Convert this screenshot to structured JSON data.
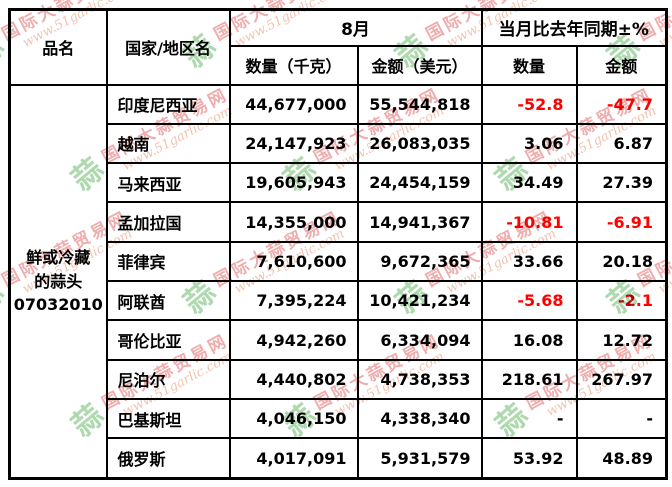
{
  "table": {
    "headers": {
      "product": "品名",
      "country": "国家/地区名",
      "month_group": "8月",
      "yoy_group": "当月比去年同期±%",
      "qty_kg": "数量（千克）",
      "amount_usd": "金额（美元）",
      "qty": "数量",
      "amount": "金额"
    },
    "product": {
      "name": "鲜或冷藏的蒜头",
      "code": "07032010"
    },
    "rows": [
      {
        "country": "印度尼西亚",
        "qty": "44,677,000",
        "amount": "55,544,818",
        "qty_pct": "-52.8",
        "amount_pct": "-47.7"
      },
      {
        "country": "越南",
        "qty": "24,147,923",
        "amount": "26,083,035",
        "qty_pct": "3.06",
        "amount_pct": "6.87"
      },
      {
        "country": "马来西亚",
        "qty": "19,605,943",
        "amount": "24,454,159",
        "qty_pct": "34.49",
        "amount_pct": "27.39"
      },
      {
        "country": "孟加拉国",
        "qty": "14,355,000",
        "amount": "14,941,367",
        "qty_pct": "-10.81",
        "amount_pct": "-6.91"
      },
      {
        "country": "菲律宾",
        "qty": "7,610,600",
        "amount": "9,672,365",
        "qty_pct": "33.66",
        "amount_pct": "20.18"
      },
      {
        "country": "阿联酋",
        "qty": "7,395,224",
        "amount": "10,421,234",
        "qty_pct": "-5.68",
        "amount_pct": "-2.1"
      },
      {
        "country": "哥伦比亚",
        "qty": "4,942,260",
        "amount": "6,334,094",
        "qty_pct": "16.08",
        "amount_pct": "12.72"
      },
      {
        "country": "尼泊尔",
        "qty": "4,440,802",
        "amount": "4,738,353",
        "qty_pct": "218.61",
        "amount_pct": "267.97"
      },
      {
        "country": "巴基斯坦",
        "qty": "4,046,150",
        "amount": "4,338,340",
        "qty_pct": "-",
        "amount_pct": "-"
      },
      {
        "country": "俄罗斯",
        "qty": "4,017,091",
        "amount": "5,931,579",
        "qty_pct": "53.92",
        "amount_pct": "48.89"
      }
    ]
  },
  "watermark": {
    "logo": "蒜",
    "line1": "国际大蒜贸易网",
    "line2": "www.51garlic.com"
  },
  "colors": {
    "border": "#000000",
    "negative": "#ff0000",
    "watermark_pink": "#e05c5c",
    "watermark_pink2": "#e8855f",
    "watermark_green": "#5fb45f"
  }
}
